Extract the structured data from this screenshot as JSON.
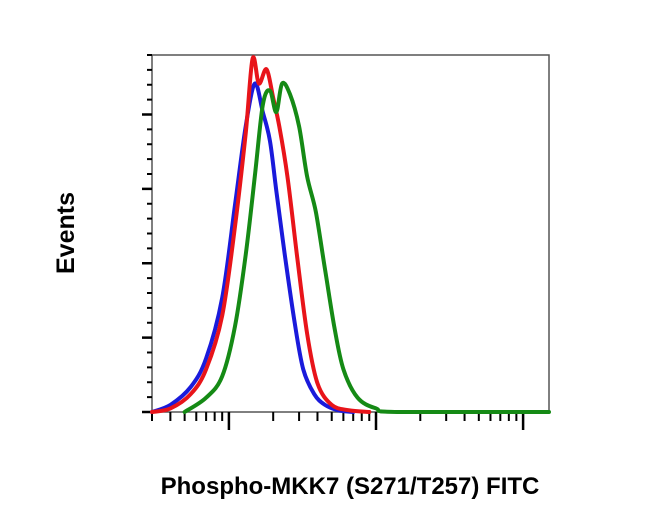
{
  "chart_data": {
    "type": "line",
    "title": "",
    "xlabel": "Phospho-MKK7 (S271/T257) FITC",
    "ylabel": "Events",
    "x_scale": "log",
    "xlim": [
      0.3,
      150
    ],
    "ylim": [
      0,
      100
    ],
    "major_x_ticks": [
      1,
      10,
      100
    ],
    "grid": false,
    "legend": "none",
    "colors": {
      "frame": "#555555",
      "axis": "#000000"
    },
    "series": [
      {
        "color": "#1a1adb",
        "x": [
          0.3,
          0.4,
          0.55,
          0.7,
          0.9,
          1.1,
          1.3,
          1.5,
          1.7,
          1.9,
          2.1,
          2.4,
          2.8,
          3.2,
          3.8,
          4.5,
          5.5,
          7
        ],
        "y": [
          0,
          2,
          7,
          15,
          32,
          58,
          80,
          92,
          84,
          76,
          62,
          44,
          25,
          12,
          5,
          2,
          0.5,
          0
        ]
      },
      {
        "color": "#e8141a",
        "x": [
          0.3,
          0.4,
          0.55,
          0.7,
          0.9,
          1.1,
          1.3,
          1.45,
          1.6,
          1.8,
          2.0,
          2.2,
          2.5,
          2.9,
          3.4,
          4.0,
          5.0,
          6.5,
          9
        ],
        "y": [
          0,
          1,
          5,
          12,
          27,
          52,
          78,
          99,
          92,
          96,
          88,
          80,
          66,
          44,
          22,
          8,
          2,
          0.5,
          0
        ]
      },
      {
        "color": "#158a15",
        "x": [
          0.5,
          0.7,
          0.9,
          1.1,
          1.3,
          1.5,
          1.7,
          1.9,
          2.1,
          2.3,
          2.6,
          3.0,
          3.4,
          3.9,
          4.5,
          5.2,
          6.0,
          7.5,
          10,
          14,
          150
        ],
        "y": [
          0,
          4,
          10,
          24,
          44,
          66,
          86,
          90,
          84,
          92,
          89,
          80,
          66,
          56,
          40,
          24,
          12,
          4,
          1,
          0,
          0
        ]
      }
    ]
  }
}
